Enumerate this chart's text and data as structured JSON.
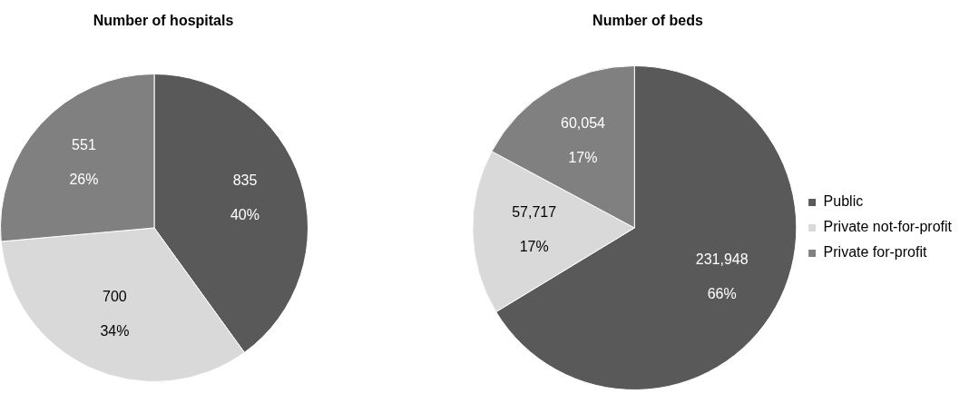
{
  "chart_data": [
    {
      "type": "pie",
      "title": "Number of hospitals",
      "categories": [
        null,
        null,
        null
      ],
      "values": [
        835,
        700,
        551
      ],
      "colors": [
        "#595959",
        "#d9d9d9",
        "#808080"
      ],
      "value_labels": [
        "835",
        "700",
        "551"
      ],
      "annotations": [
        "40%",
        "34%",
        "26%"
      ],
      "legend": false
    },
    {
      "type": "pie",
      "title": "Number of beds",
      "categories": [
        "Public",
        "Private not-for-profit",
        "Private for-profit"
      ],
      "values": [
        231948,
        57717,
        60054
      ],
      "colors": [
        "#595959",
        "#d9d9d9",
        "#808080"
      ],
      "value_labels": [
        "231,948",
        "57,717",
        "60,054"
      ],
      "annotations": [
        "66%",
        "17%",
        "17%"
      ],
      "legend": "right"
    }
  ]
}
